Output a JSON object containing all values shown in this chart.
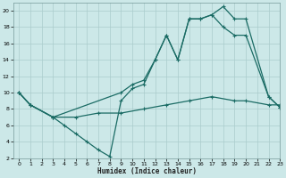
{
  "xlabel": "Humidex (Indice chaleur)",
  "bg_color": "#cce8e8",
  "grid_color": "#aacccc",
  "line_color": "#1a6b64",
  "xlim": [
    -0.5,
    23
  ],
  "ylim": [
    2,
    21
  ],
  "xticks": [
    0,
    1,
    2,
    3,
    4,
    5,
    6,
    7,
    8,
    9,
    10,
    11,
    12,
    13,
    14,
    15,
    16,
    17,
    18,
    19,
    20,
    21,
    22,
    23
  ],
  "yticks": [
    2,
    4,
    6,
    8,
    10,
    12,
    14,
    16,
    18,
    20
  ],
  "line1_x": [
    0,
    1,
    3,
    4,
    5,
    6,
    7,
    8,
    9,
    10,
    11,
    12,
    13,
    14,
    15,
    16,
    17,
    18,
    19,
    20,
    22,
    23
  ],
  "line1_y": [
    10,
    8.5,
    7,
    6,
    5,
    4,
    3,
    2.2,
    9,
    10.5,
    11,
    14,
    17,
    14,
    19,
    19,
    19.5,
    20.5,
    19,
    19,
    9.5,
    8.2
  ],
  "line2_x": [
    0,
    1,
    3,
    9,
    10,
    11,
    12,
    13,
    14,
    15,
    16,
    17,
    18,
    19,
    20,
    22,
    23
  ],
  "line2_y": [
    10,
    8.5,
    7,
    10,
    11,
    11.5,
    14,
    17,
    14,
    19,
    19,
    19.5,
    18,
    17,
    17,
    9.5,
    8.2
  ],
  "line3_x": [
    0,
    1,
    3,
    5,
    7,
    9,
    11,
    13,
    15,
    17,
    19,
    20,
    22,
    23
  ],
  "line3_y": [
    10,
    8.5,
    7,
    7,
    7.5,
    7.5,
    8,
    8.5,
    9,
    9.5,
    9,
    9,
    8.5,
    8.5
  ]
}
